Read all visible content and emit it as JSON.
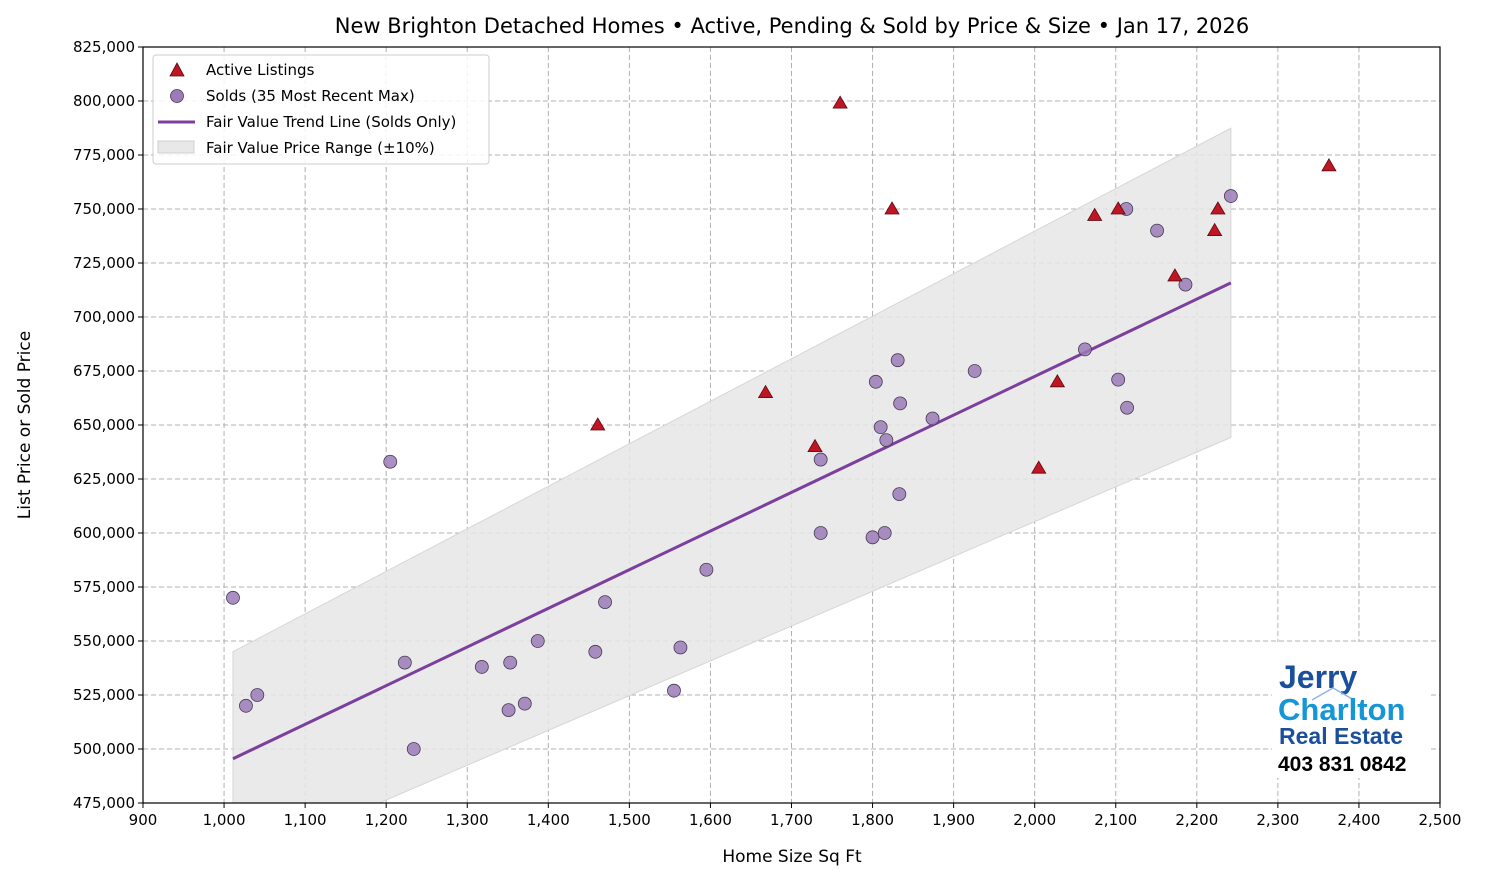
{
  "chart_data": {
    "type": "scatter",
    "title": "New Brighton Detached Homes • Active, Pending & Sold by Price & Size • Jan 17, 2026",
    "xlabel": "Home Size Sq Ft",
    "ylabel": "List Price or Sold Price",
    "xlim": [
      900,
      2500
    ],
    "ylim": [
      475000,
      825000
    ],
    "xticks": [
      900,
      1000,
      1100,
      1200,
      1300,
      1400,
      1500,
      1600,
      1700,
      1800,
      1900,
      2000,
      2100,
      2200,
      2300,
      2400,
      2500
    ],
    "yticks": [
      475000,
      500000,
      525000,
      550000,
      575000,
      600000,
      625000,
      650000,
      675000,
      700000,
      725000,
      750000,
      775000,
      800000,
      825000
    ],
    "grid": true,
    "legend_position": "top-left",
    "legend": [
      "Active Listings",
      "Solds (35 Most Recent Max)",
      "Fair Value Trend Line (Solds Only)",
      "Fair Value Price Range (±10%)"
    ],
    "colors": {
      "active": "#c01525",
      "sold": "#9b7bb8",
      "trend": "#7b3f9e",
      "band": "#e6e6e6"
    },
    "series": [
      {
        "name": "Active Listings",
        "marker": "triangle",
        "points": [
          [
            1760,
            799000
          ],
          [
            1824,
            750000
          ],
          [
            2103,
            750000
          ],
          [
            2074,
            747000
          ],
          [
            2226,
            750000
          ],
          [
            2222,
            740000
          ],
          [
            2173,
            719000
          ],
          [
            2363,
            770000
          ],
          [
            1668,
            665000
          ],
          [
            1461,
            650000
          ],
          [
            1729,
            640000
          ],
          [
            2028,
            670000
          ],
          [
            2005,
            630000
          ]
        ]
      },
      {
        "name": "Solds (35 Most Recent Max)",
        "marker": "circle",
        "points": [
          [
            1011,
            570000
          ],
          [
            1027,
            520000
          ],
          [
            1041,
            525000
          ],
          [
            1205,
            633000
          ],
          [
            1223,
            540000
          ],
          [
            1234,
            500000
          ],
          [
            1318,
            538000
          ],
          [
            1353,
            540000
          ],
          [
            1351,
            518000
          ],
          [
            1371,
            521000
          ],
          [
            1387,
            550000
          ],
          [
            1458,
            545000
          ],
          [
            1470,
            568000
          ],
          [
            1555,
            527000
          ],
          [
            1563,
            547000
          ],
          [
            1595,
            583000
          ],
          [
            1736,
            634000
          ],
          [
            1736,
            600000
          ],
          [
            1800,
            598000
          ],
          [
            1804,
            670000
          ],
          [
            1810,
            649000
          ],
          [
            1815,
            600000
          ],
          [
            1817,
            643000
          ],
          [
            1831,
            680000
          ],
          [
            1834,
            660000
          ],
          [
            1833,
            618000
          ],
          [
            1874,
            653000
          ],
          [
            1926,
            675000
          ],
          [
            2062,
            685000
          ],
          [
            2103,
            671000
          ],
          [
            2113,
            750000
          ],
          [
            2114,
            658000
          ],
          [
            2151,
            740000
          ],
          [
            2186,
            715000
          ],
          [
            2242,
            756000
          ]
        ]
      },
      {
        "name": "Fair Value Trend Line (Solds Only)",
        "type": "line",
        "points": [
          [
            1011,
            495500
          ],
          [
            2242,
            715800
          ]
        ]
      },
      {
        "name": "Fair Value Price Range (±10%)",
        "type": "band",
        "percent": 10
      }
    ]
  },
  "branding": {
    "line1": "Jerry",
    "line2": "Charlton",
    "line3": "Real Estate",
    "phone": "403 831 0842"
  }
}
